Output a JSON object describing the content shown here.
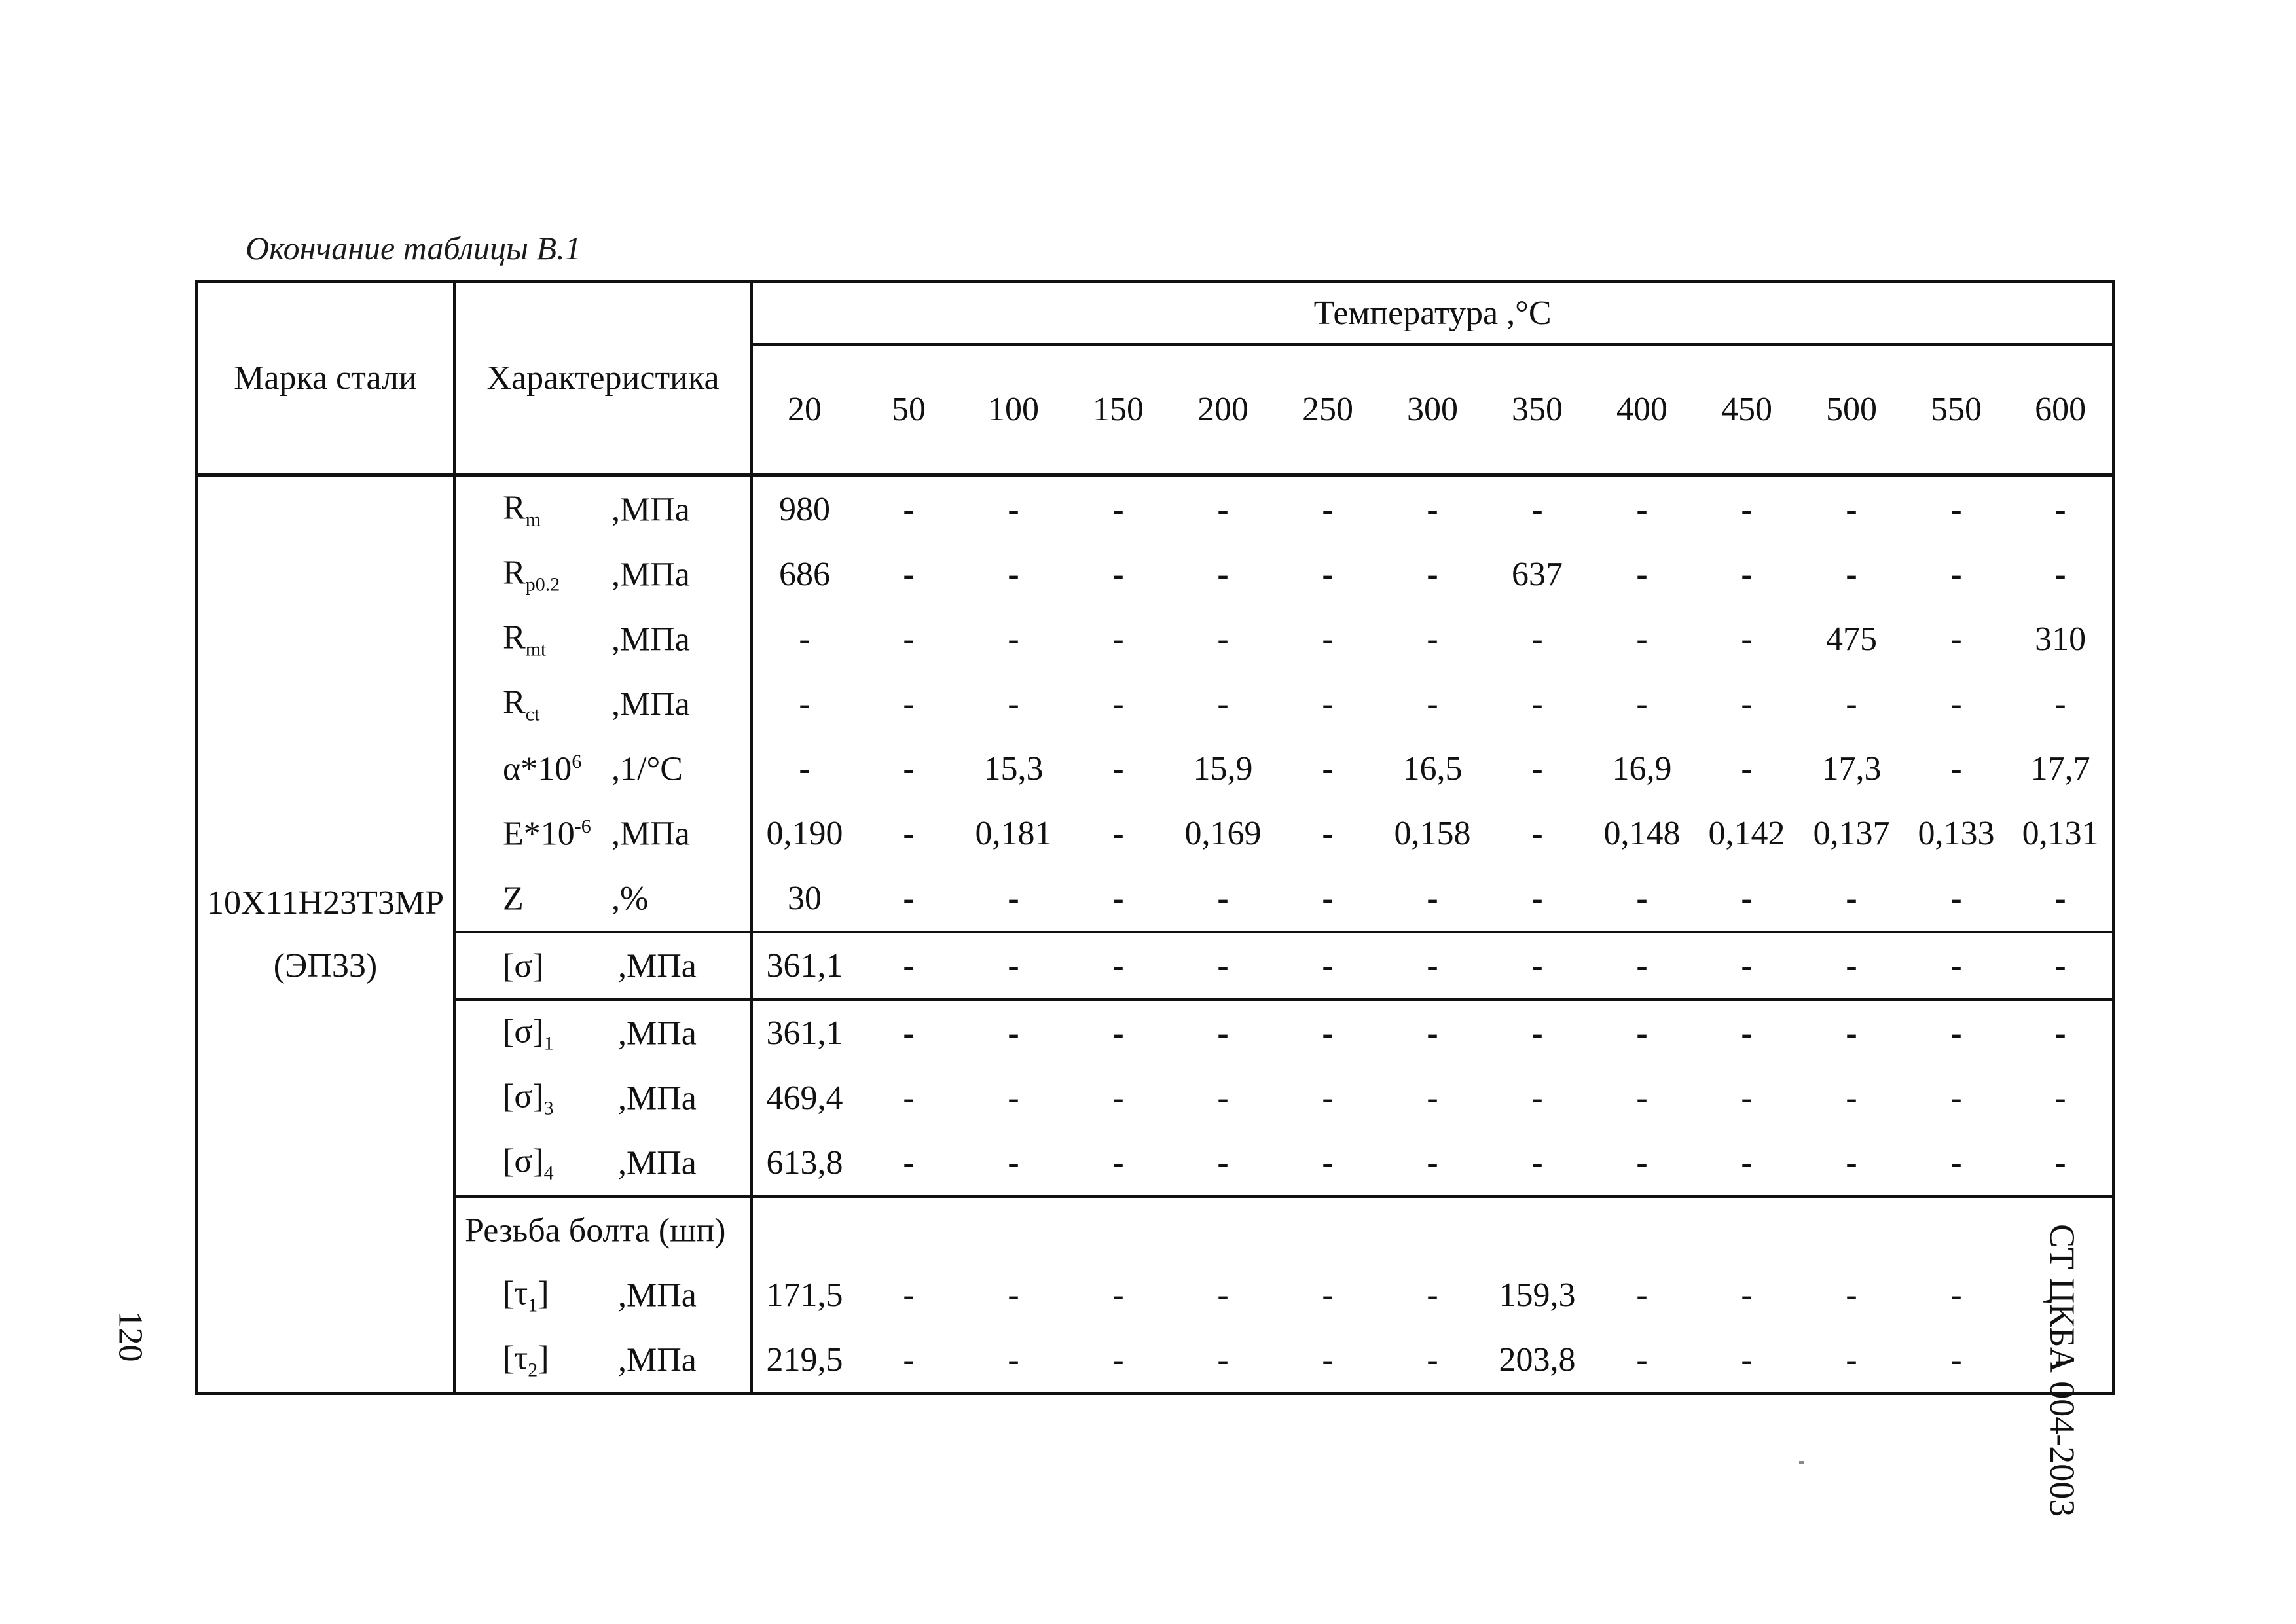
{
  "caption": "Окончание таблицы В.1",
  "header": {
    "steel_grade": "Марка стали",
    "characteristic": "Характеристика",
    "temperature": "Температура ,°С",
    "temps": [
      "20",
      "50",
      "100",
      "150",
      "200",
      "250",
      "300",
      "350",
      "400",
      "450",
      "500",
      "550",
      "600"
    ]
  },
  "steel": {
    "grade": "10Х11Н23Т3МР",
    "alias": "(ЭП33)"
  },
  "rows": [
    {
      "sym": "R",
      "sub": "m",
      "sup": "",
      "unit": ",МПа",
      "values": [
        "980",
        "-",
        "-",
        "-",
        "-",
        "-",
        "-",
        "-",
        "-",
        "-",
        "-",
        "-",
        "-"
      ]
    },
    {
      "sym": "R",
      "sub": "p0.2",
      "sup": "",
      "unit": ",МПа",
      "values": [
        "686",
        "-",
        "-",
        "-",
        "-",
        "-",
        "-",
        "637",
        "-",
        "-",
        "-",
        "-",
        "-"
      ]
    },
    {
      "sym": "R",
      "sub": "mt",
      "sup": "",
      "unit": ",МПа",
      "values": [
        "-",
        "-",
        "-",
        "-",
        "-",
        "-",
        "-",
        "-",
        "-",
        "-",
        "475",
        "-",
        "310"
      ]
    },
    {
      "sym": "R",
      "sub": "ct",
      "sup": "",
      "unit": ",МПа",
      "values": [
        "-",
        "-",
        "-",
        "-",
        "-",
        "-",
        "-",
        "-",
        "-",
        "-",
        "-",
        "-",
        "-"
      ]
    },
    {
      "sym": "α*10",
      "sub": "",
      "sup": "6",
      "unit": ",1/°С",
      "values": [
        "-",
        "-",
        "15,3",
        "-",
        "15,9",
        "-",
        "16,5",
        "-",
        "16,9",
        "-",
        "17,3",
        "-",
        "17,7"
      ]
    },
    {
      "sym": "E*10",
      "sub": "",
      "sup": "-6",
      "unit": ",МПа",
      "values": [
        "0,190",
        "-",
        "0,181",
        "-",
        "0,169",
        "-",
        "0,158",
        "-",
        "0,148",
        "0,142",
        "0,137",
        "0,133",
        "0,131"
      ]
    },
    {
      "sym": "Z",
      "sub": "",
      "sup": "",
      "unit": ",%",
      "values": [
        "30",
        "-",
        "-",
        "-",
        "-",
        "-",
        "-",
        "-",
        "-",
        "-",
        "-",
        "-",
        "-"
      ]
    },
    {
      "sym": "[σ]",
      "sub": "",
      "sup": "",
      "unit": ",МПа",
      "values": [
        "361,1",
        "-",
        "-",
        "-",
        "-",
        "-",
        "-",
        "-",
        "-",
        "-",
        "-",
        "-",
        "-"
      ]
    },
    {
      "sym": "[σ]",
      "sub": "1",
      "sup": "",
      "unit": ",МПа",
      "values": [
        "361,1",
        "-",
        "-",
        "-",
        "-",
        "-",
        "-",
        "-",
        "-",
        "-",
        "-",
        "-",
        "-"
      ]
    },
    {
      "sym": "[σ]",
      "sub": "3",
      "sup": "",
      "unit": ",МПа",
      "values": [
        "469,4",
        "-",
        "-",
        "-",
        "-",
        "-",
        "-",
        "-",
        "-",
        "-",
        "-",
        "-",
        "-"
      ]
    },
    {
      "sym": "[σ]",
      "sub": "4",
      "sup": "",
      "unit": ",МПа",
      "values": [
        "613,8",
        "-",
        "-",
        "-",
        "-",
        "-",
        "-",
        "-",
        "-",
        "-",
        "-",
        "-",
        "-"
      ]
    },
    {
      "sym": "Резьба болта (шп)",
      "sub": "",
      "sup": "",
      "unit": "",
      "values": [
        "",
        "",
        "",
        "",
        "",
        "",
        "",
        "",
        "",
        "",
        "",
        "",
        ""
      ]
    },
    {
      "sym": "[τ",
      "sub": "1",
      "sup": "",
      "unit": ",МПа",
      "close": "]",
      "values": [
        "171,5",
        "-",
        "-",
        "-",
        "-",
        "-",
        "-",
        "159,3",
        "-",
        "-",
        "-",
        "-",
        "-"
      ]
    },
    {
      "sym": "[τ",
      "sub": "2",
      "sup": "",
      "unit": ",МПа",
      "close": "]",
      "values": [
        "219,5",
        "-",
        "-",
        "-",
        "-",
        "-",
        "-",
        "203,8",
        "-",
        "-",
        "-",
        "-",
        "-"
      ]
    }
  ],
  "page_number": "120",
  "doc_code": "СТ ЦКБА 004-2003"
}
